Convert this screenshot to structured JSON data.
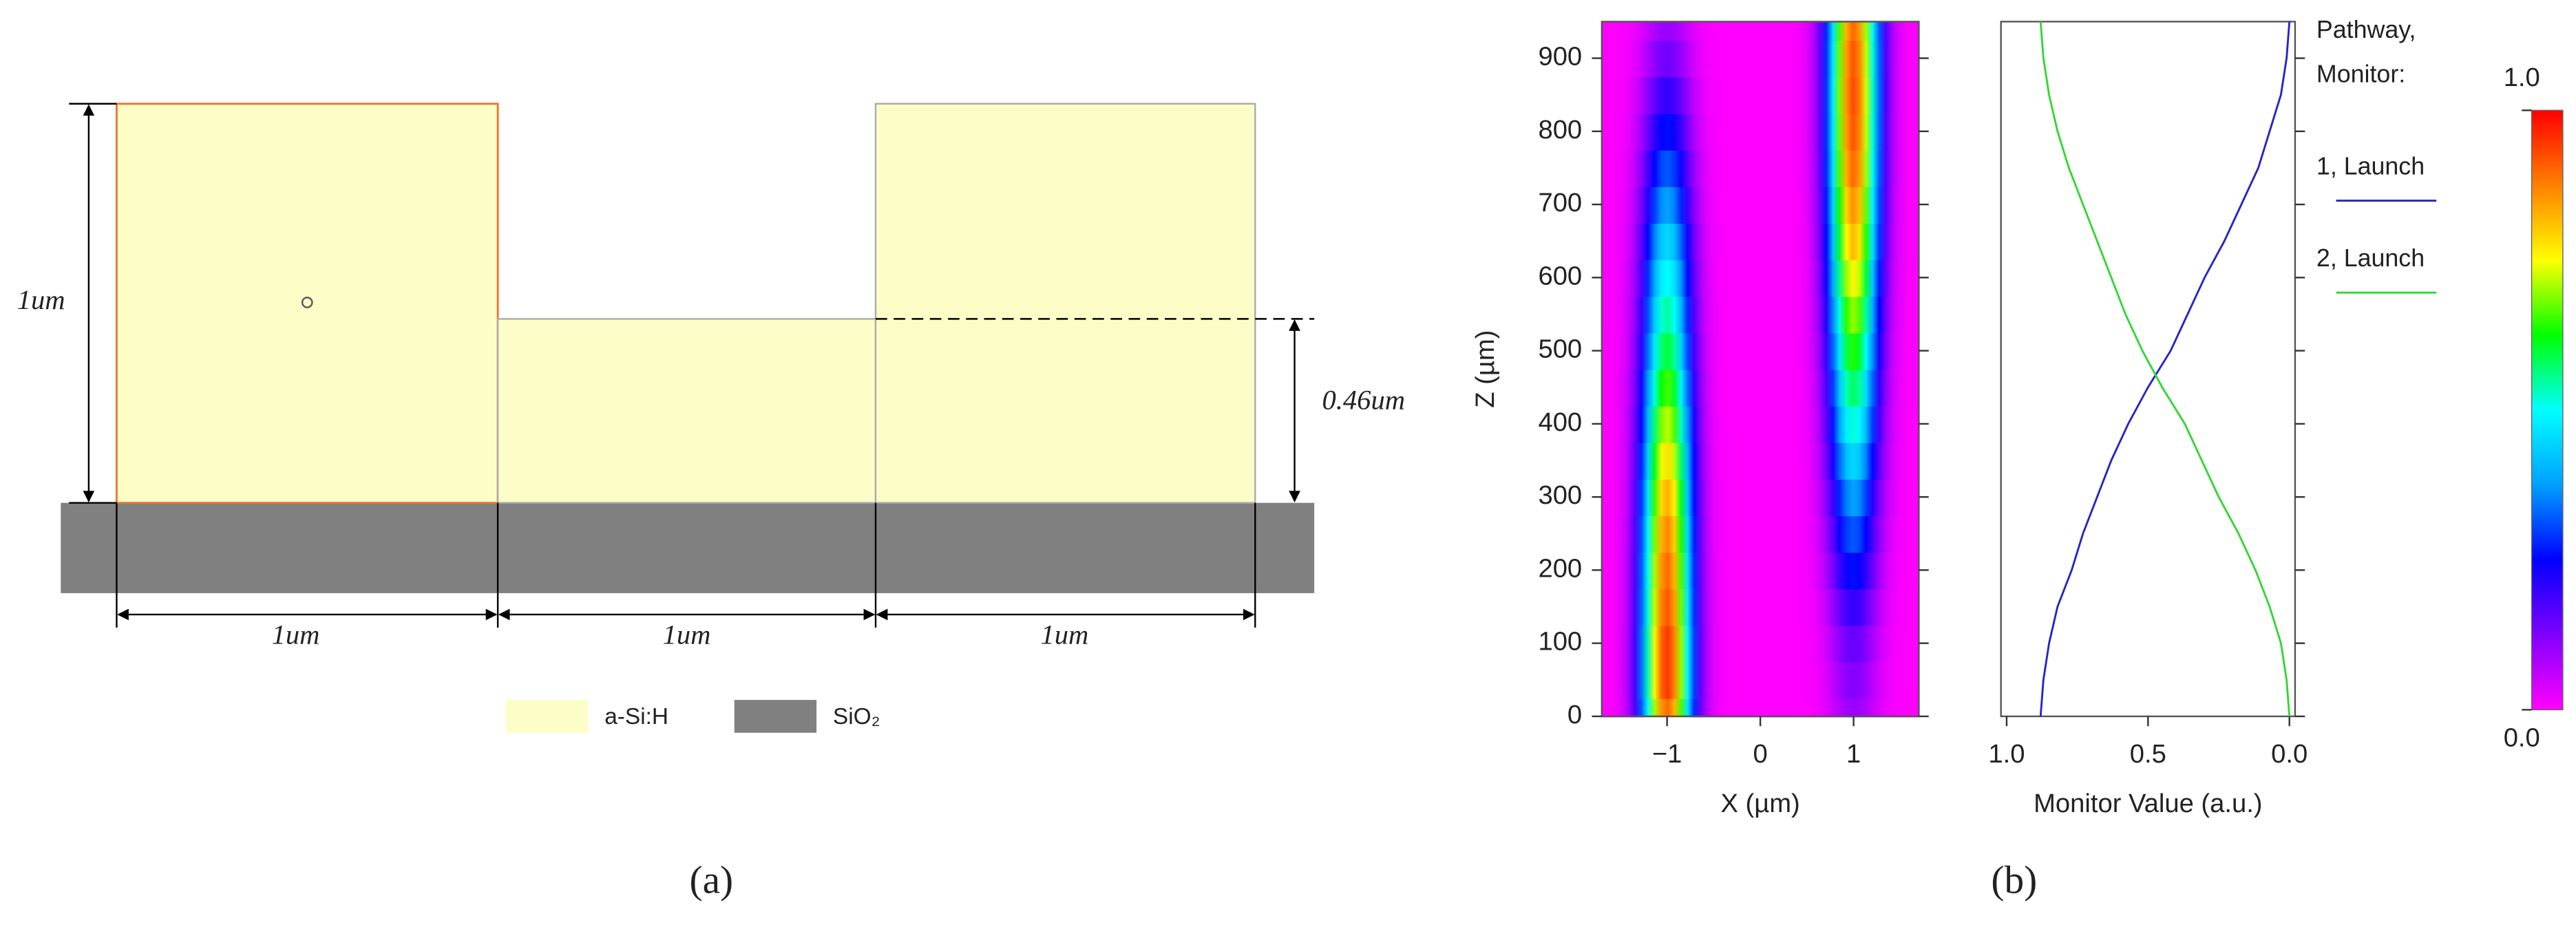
{
  "diagram": {
    "height_label": "1um",
    "step_label": "0.46um",
    "width_labels": [
      "1um",
      "1um",
      "1um"
    ],
    "legend": [
      "a-Si:H",
      "SiO₂"
    ],
    "panel_label": "(a)"
  },
  "panel_b_label": "(b)",
  "chart_data": [
    {
      "type": "heatmap",
      "xlabel": "X (µm)",
      "ylabel": "Z (µm)",
      "xlim": [
        -1.7,
        1.7
      ],
      "xticks": [
        {
          "value": -1,
          "label": "−1"
        },
        0,
        1
      ],
      "ylim": [
        0,
        950
      ],
      "yticks": [
        0,
        100,
        200,
        300,
        400,
        500,
        600,
        700,
        800,
        900
      ],
      "z": [
        0,
        50,
        100,
        150,
        200,
        250,
        300,
        350,
        400,
        450,
        500,
        550,
        600,
        650,
        700,
        750,
        800,
        850,
        900,
        950
      ],
      "guides": [
        {
          "x": -1,
          "values": [
            0.9,
            0.95,
            0.95,
            0.92,
            0.9,
            0.87,
            0.83,
            0.78,
            0.72,
            0.66,
            0.6,
            0.55,
            0.5,
            0.45,
            0.38,
            0.32,
            0.26,
            0.2,
            0.14,
            0.1
          ]
        },
        {
          "x": 1,
          "values": [
            0.1,
            0.12,
            0.15,
            0.2,
            0.26,
            0.32,
            0.38,
            0.45,
            0.52,
            0.58,
            0.64,
            0.7,
            0.76,
            0.82,
            0.86,
            0.9,
            0.92,
            0.93,
            0.92,
            0.9
          ]
        }
      ],
      "colors": [
        "#ff00ff",
        "#8000ff",
        "#0000ff",
        "#00a0ff",
        "#00ffff",
        "#00ff00",
        "#ffff00",
        "#ff8000",
        "#ff0000"
      ],
      "colorbar": {
        "lim": [
          0,
          1
        ],
        "ticks": [
          {
            "value": 1,
            "label": "1.0"
          },
          {
            "value": 0,
            "label": "0.0"
          }
        ]
      }
    },
    {
      "type": "line",
      "xlabel": "Monitor Value (a.u.)",
      "xlim": [
        1.02,
        -0.02
      ],
      "xticks": [
        {
          "value": 1,
          "label": "1.0"
        },
        0.5,
        {
          "value": 0,
          "label": "0.0"
        }
      ],
      "ylim": [
        0,
        950
      ],
      "yticks": [
        0,
        100,
        200,
        300,
        400,
        500,
        600,
        700,
        800,
        900
      ],
      "legend_title": [
        "Pathway,",
        "Monitor:"
      ],
      "z": [
        0,
        50,
        100,
        150,
        200,
        250,
        300,
        350,
        400,
        450,
        500,
        550,
        600,
        650,
        700,
        750,
        800,
        850,
        900,
        950
      ],
      "series": [
        {
          "name": "1, Launch",
          "color": "#2424c8",
          "values": [
            0.88,
            0.87,
            0.85,
            0.82,
            0.77,
            0.73,
            0.68,
            0.63,
            0.57,
            0.5,
            0.42,
            0.36,
            0.3,
            0.23,
            0.17,
            0.11,
            0.07,
            0.03,
            0.01,
            0.0
          ]
        },
        {
          "name": "2, Launch",
          "color": "#33d633",
          "values": [
            0.0,
            0.01,
            0.03,
            0.07,
            0.12,
            0.18,
            0.25,
            0.31,
            0.37,
            0.45,
            0.52,
            0.58,
            0.63,
            0.68,
            0.73,
            0.78,
            0.82,
            0.85,
            0.87,
            0.88
          ]
        }
      ]
    }
  ]
}
